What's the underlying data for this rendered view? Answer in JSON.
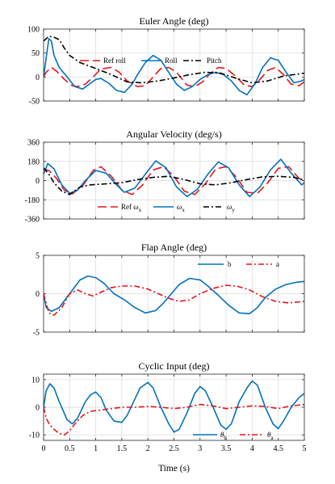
{
  "figure": {
    "xlabel": "Time (s)"
  },
  "chart_data": [
    {
      "type": "line",
      "title": "Euler Angle (deg)",
      "xlabel": "",
      "ylabel": "",
      "xlim": [
        0,
        5
      ],
      "ylim": [
        -50,
        100
      ],
      "xticks": [
        0,
        0.5,
        1,
        1.5,
        2,
        2.5,
        3,
        3.5,
        4,
        4.5,
        5
      ],
      "yticks": [
        -50,
        0,
        50,
        100
      ],
      "ytick_labels": [
        "-50",
        "0",
        "50",
        "100"
      ],
      "grid": true,
      "legend_position": "top-right",
      "series": [
        {
          "name": "Ref roll",
          "color": "#e8141b",
          "style": "dash",
          "x": [
            0,
            0.05,
            0.15,
            0.25,
            0.4,
            0.55,
            0.65,
            0.8,
            0.95,
            1.1,
            1.3,
            1.45,
            1.6,
            1.8,
            1.95,
            2.1,
            2.25,
            2.4,
            2.55,
            2.75,
            2.9,
            3.05,
            3.2,
            3.35,
            3.5,
            3.7,
            3.85,
            4.0,
            4.15,
            4.3,
            4.45,
            4.6,
            4.75,
            4.9,
            5.0
          ],
          "y": [
            0,
            10,
            20,
            12,
            -5,
            -18,
            -20,
            -15,
            0,
            17,
            20,
            10,
            -8,
            -20,
            -18,
            0,
            18,
            20,
            10,
            -17,
            -20,
            -10,
            8,
            20,
            18,
            0,
            -17,
            -20,
            -5,
            14,
            20,
            5,
            -15,
            -18,
            -10
          ]
        },
        {
          "name": "Roll",
          "color": "#0072bd",
          "style": "solid",
          "x": [
            0,
            0.05,
            0.1,
            0.15,
            0.2,
            0.3,
            0.45,
            0.6,
            0.75,
            0.9,
            1.0,
            1.1,
            1.25,
            1.4,
            1.55,
            1.7,
            1.8,
            1.95,
            2.1,
            2.25,
            2.4,
            2.55,
            2.7,
            2.85,
            3.0,
            3.15,
            3.3,
            3.45,
            3.6,
            3.75,
            3.9,
            4.05,
            4.2,
            4.35,
            4.5,
            4.65,
            4.8,
            4.95,
            5.0
          ],
          "y": [
            0,
            40,
            80,
            75,
            45,
            20,
            0,
            -20,
            -25,
            -13,
            -5,
            -3,
            -13,
            -28,
            -32,
            -15,
            5,
            30,
            45,
            35,
            10,
            -15,
            -28,
            -20,
            -5,
            5,
            10,
            5,
            -8,
            -28,
            -37,
            -15,
            20,
            40,
            35,
            10,
            -12,
            -8,
            -5
          ]
        },
        {
          "name": "Pitch",
          "color": "#000000",
          "style": "dashdot",
          "x": [
            0,
            0.1,
            0.2,
            0.3,
            0.4,
            0.5,
            0.7,
            1.0,
            1.3,
            1.6,
            1.9,
            2.2,
            2.5,
            2.8,
            3.1,
            3.4,
            3.7,
            4.0,
            4.3,
            4.6,
            5.0
          ],
          "y": [
            75,
            85,
            83,
            78,
            60,
            45,
            30,
            18,
            5,
            -10,
            -12,
            -8,
            -2,
            5,
            10,
            8,
            -3,
            -12,
            -8,
            2,
            8
          ]
        }
      ]
    },
    {
      "type": "line",
      "title": "Angular Velocity (deg/s)",
      "xlabel": "",
      "ylabel": "",
      "xlim": [
        0,
        5
      ],
      "ylim": [
        -360,
        360
      ],
      "xticks": [
        0,
        0.5,
        1,
        1.5,
        2,
        2.5,
        3,
        3.5,
        4,
        4.5,
        5
      ],
      "yticks": [
        -360,
        -180,
        0,
        180,
        360
      ],
      "ytick_labels": [
        "-360",
        "-180",
        "0",
        "180",
        "360"
      ],
      "grid": true,
      "legend_position": "bottom-center",
      "series": [
        {
          "name": "Ref ω_x",
          "color": "#e8141b",
          "style": "dash",
          "x": [
            0,
            0.1,
            0.25,
            0.4,
            0.55,
            0.75,
            0.95,
            1.1,
            1.3,
            1.5,
            1.7,
            1.9,
            2.1,
            2.3,
            2.5,
            2.7,
            2.9,
            3.1,
            3.3,
            3.5,
            3.7,
            3.9,
            4.1,
            4.3,
            4.5,
            4.7,
            4.9,
            5.0
          ],
          "y": [
            110,
            95,
            20,
            -90,
            -125,
            -50,
            95,
            130,
            40,
            -90,
            -130,
            -40,
            100,
            130,
            40,
            -100,
            -130,
            -30,
            110,
            130,
            30,
            -110,
            -120,
            -20,
            115,
            130,
            20,
            0
          ]
        },
        {
          "name": "ω_x",
          "color": "#0072bd",
          "style": "solid",
          "x": [
            0,
            0.08,
            0.2,
            0.35,
            0.5,
            0.65,
            0.8,
            1.0,
            1.2,
            1.4,
            1.55,
            1.75,
            1.95,
            2.15,
            2.35,
            2.55,
            2.75,
            2.95,
            3.15,
            3.35,
            3.55,
            3.75,
            3.95,
            4.15,
            4.35,
            4.55,
            4.75,
            4.95,
            5.0
          ],
          "y": [
            60,
            160,
            110,
            -40,
            -120,
            -90,
            0,
            95,
            70,
            -40,
            -110,
            -70,
            60,
            185,
            120,
            -60,
            -150,
            -80,
            60,
            175,
            120,
            -40,
            -150,
            -60,
            100,
            200,
            70,
            -40,
            -20
          ]
        },
        {
          "name": "ω_y",
          "color": "#000000",
          "style": "dashdot",
          "x": [
            0,
            0.1,
            0.2,
            0.35,
            0.5,
            0.7,
            0.9,
            1.2,
            1.5,
            1.8,
            2.1,
            2.4,
            2.7,
            3.0,
            3.3,
            3.6,
            3.9,
            4.2,
            4.5,
            4.8,
            5.0
          ],
          "y": [
            120,
            60,
            -20,
            -100,
            -130,
            -60,
            -40,
            -30,
            -20,
            10,
            30,
            40,
            10,
            -30,
            -40,
            -20,
            10,
            35,
            40,
            30,
            5
          ]
        }
      ]
    },
    {
      "type": "line",
      "title": "Flap Angle (deg)",
      "xlabel": "",
      "ylabel": "",
      "xlim": [
        0,
        5
      ],
      "ylim": [
        -5,
        5
      ],
      "xticks": [
        0,
        0.5,
        1,
        1.5,
        2,
        2.5,
        3,
        3.5,
        4,
        4.5,
        5
      ],
      "yticks": [
        -5,
        0,
        5
      ],
      "ytick_labels": [
        "-5",
        "0",
        "5"
      ],
      "grid": true,
      "legend_position": "top-right",
      "series": [
        {
          "name": "b",
          "color": "#0072bd",
          "style": "solid",
          "x": [
            0,
            0.05,
            0.15,
            0.3,
            0.5,
            0.7,
            0.85,
            1.0,
            1.15,
            1.35,
            1.55,
            1.75,
            1.95,
            2.15,
            2.3,
            2.45,
            2.6,
            2.8,
            3.0,
            3.15,
            3.35,
            3.55,
            3.75,
            3.95,
            4.1,
            4.25,
            4.45,
            4.65,
            4.85,
            5.0
          ],
          "y": [
            0,
            -1.8,
            -2.3,
            -1.8,
            0,
            1.8,
            2.3,
            2.1,
            1.4,
            0,
            -0.8,
            -1.8,
            -2.5,
            -2.2,
            -1.2,
            0,
            1.2,
            2.0,
            1.8,
            1.0,
            -0.2,
            -1.5,
            -2.5,
            -2.6,
            -1.8,
            -0.5,
            0.6,
            1.2,
            1.5,
            1.6
          ]
        },
        {
          "name": "a",
          "color": "#e8141b",
          "style": "dashdot",
          "x": [
            0,
            0.1,
            0.2,
            0.35,
            0.5,
            0.65,
            0.8,
            0.95,
            1.1,
            1.3,
            1.5,
            1.75,
            2.0,
            2.2,
            2.4,
            2.6,
            2.8,
            3.0,
            3.25,
            3.5,
            3.7,
            3.95,
            4.2,
            4.45,
            4.7,
            5.0
          ],
          "y": [
            0,
            -2.5,
            -2.8,
            -1.8,
            0,
            0.5,
            0,
            -0.3,
            0.2,
            0.8,
            1.0,
            1.0,
            0.6,
            0,
            -0.6,
            -1.0,
            -0.8,
            0,
            0.7,
            1.1,
            1.0,
            0.5,
            -0.4,
            -1.0,
            -1.2,
            -1.0
          ]
        }
      ]
    },
    {
      "type": "line",
      "title": "Cyclic Input (deg)",
      "xlabel": "Time (s)",
      "ylabel": "",
      "xlim": [
        0,
        5
      ],
      "ylim": [
        -12,
        12
      ],
      "xticks": [
        0,
        0.5,
        1,
        1.5,
        2,
        2.5,
        3,
        3.5,
        4,
        4.5,
        5
      ],
      "xtick_labels": [
        "0",
        "0.5",
        "1",
        "1.5",
        "2",
        "2.5",
        "3",
        "3.5",
        "4",
        "4.5",
        "5"
      ],
      "yticks": [
        -10,
        0,
        10
      ],
      "ytick_labels": [
        "-10",
        "0",
        "10"
      ],
      "grid": true,
      "legend_position": "bottom-right",
      "series": [
        {
          "name": "θ_b",
          "color": "#0072bd",
          "style": "solid",
          "x": [
            0,
            0.05,
            0.12,
            0.2,
            0.3,
            0.45,
            0.55,
            0.65,
            0.8,
            0.9,
            1.0,
            1.1,
            1.2,
            1.35,
            1.5,
            1.6,
            1.75,
            1.85,
            2.0,
            2.1,
            2.25,
            2.4,
            2.5,
            2.6,
            2.75,
            2.9,
            3.0,
            3.1,
            3.25,
            3.4,
            3.5,
            3.6,
            3.75,
            3.9,
            4.0,
            4.1,
            4.25,
            4.4,
            4.5,
            4.6,
            4.75,
            4.9,
            5.0
          ],
          "y": [
            0,
            6,
            8.5,
            7,
            2,
            -4.5,
            -6,
            -4,
            2,
            4.5,
            5.5,
            3.5,
            -1,
            -5,
            -5.5,
            -3,
            3,
            7,
            9,
            7,
            0,
            -6,
            -9,
            -8,
            -2,
            5,
            7.5,
            6,
            0,
            -6.5,
            -8,
            -6,
            2,
            7,
            9.5,
            8,
            0,
            -6,
            -7.8,
            -5,
            0,
            3.5,
            5
          ]
        },
        {
          "name": "θ_a",
          "color": "#e8141b",
          "style": "dashdot",
          "x": [
            0,
            0.05,
            0.12,
            0.2,
            0.3,
            0.4,
            0.5,
            0.6,
            0.75,
            0.9,
            1.1,
            1.3,
            1.5,
            1.75,
            2.0,
            2.25,
            2.5,
            2.75,
            3.0,
            3.25,
            3.5,
            3.75,
            4.0,
            4.25,
            4.5,
            4.75,
            5.0
          ],
          "y": [
            0,
            -4,
            -6.5,
            -8,
            -9.5,
            -10,
            -8.5,
            -6,
            -3,
            -1.5,
            -1,
            -0.5,
            0,
            0,
            0.3,
            0,
            -0.5,
            0,
            1,
            0.5,
            -0.5,
            0,
            0.5,
            0.3,
            -0.5,
            0.5,
            1
          ]
        }
      ]
    }
  ]
}
